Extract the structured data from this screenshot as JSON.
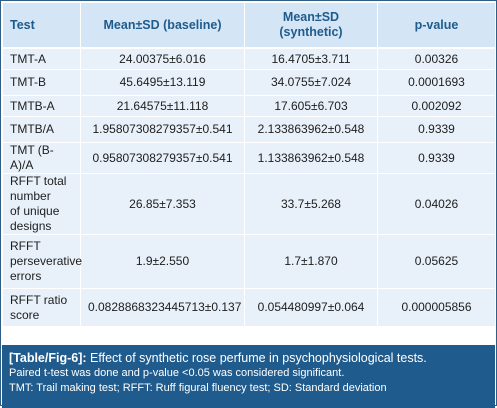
{
  "table": {
    "headers": {
      "test": "Test",
      "baseline": "Mean±SD (baseline)",
      "synthetic_1": "Mean±SD",
      "synthetic_2": "(synthetic)",
      "pvalue": "p-value"
    },
    "rows": [
      {
        "test": [
          "TMT-A"
        ],
        "baseline": "24.00375±6.016",
        "synthetic": "16.4705±3.711",
        "pvalue": "0.00326"
      },
      {
        "test": [
          "TMT-B"
        ],
        "baseline": "45.6495±13.119",
        "synthetic": "34.0755±7.024",
        "pvalue": "0.0001693"
      },
      {
        "test": [
          "TMTB-A"
        ],
        "baseline": "21.64575±11.118",
        "synthetic": "17.605±6.703",
        "pvalue": "0.002092"
      },
      {
        "test": [
          "TMTB/A"
        ],
        "baseline": "1.95807308279357±0.541",
        "synthetic": "2.133863962±0.548",
        "pvalue": "0.9339"
      },
      {
        "test": [
          "TMT (B-A)/A"
        ],
        "baseline": "0.95807308279357±0.541",
        "synthetic": "1.133863962±0.548",
        "pvalue": "0.9339"
      },
      {
        "test": [
          "RFFT total",
          "number",
          "of unique",
          "designs"
        ],
        "baseline": "26.85±7.353",
        "synthetic": "33.7±5.268",
        "pvalue": "0.04026"
      },
      {
        "test": [
          "RFFT",
          "perseverative",
          "errors"
        ],
        "baseline": "1.9±2.550",
        "synthetic": "1.7±1.870",
        "pvalue": "0.05625"
      },
      {
        "test": [
          "RFFT ratio",
          "score"
        ],
        "baseline": "0.0828868323445713±0.137",
        "synthetic": "0.054480997±0.064",
        "pvalue": "0.000005856"
      }
    ]
  },
  "caption": {
    "label": "[Table/Fig-6]:",
    "title": "Effect of synthetic rose perfume in psychophysiological tests.",
    "note1": "Paired t-test was done and p-value <0.05 was considered significant.",
    "note2": "TMT: Trail making test; RFFT: Ruff figural fluency test; SD: Standard deviation"
  }
}
